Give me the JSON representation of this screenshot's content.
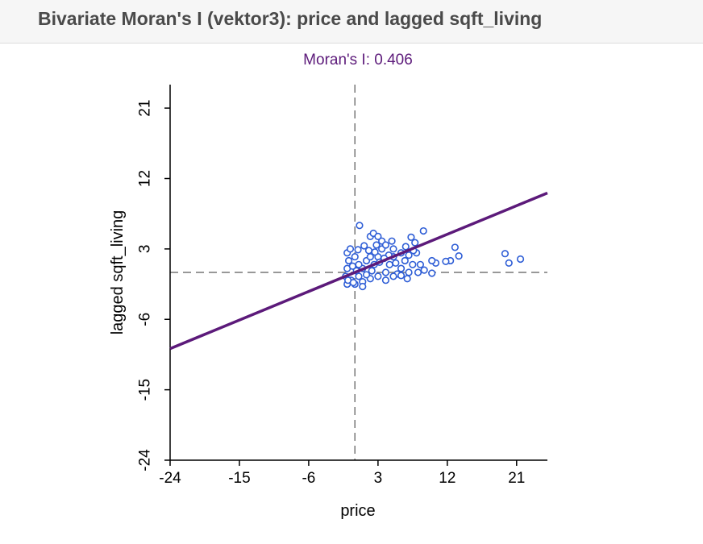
{
  "window": {
    "title": "Bivariate Moran's I (vektor3): price and lagged sqft_living"
  },
  "chart_data": {
    "type": "scatter",
    "title": "Moran's I: 0.406",
    "xlabel": "price",
    "ylabel": "lagged sqft_living",
    "xlim": [
      -24,
      25
    ],
    "ylim": [
      -24,
      24
    ],
    "xticks": [
      "-24",
      "-15",
      "-6",
      "3",
      "12",
      "21"
    ],
    "yticks": [
      "-24",
      "-15",
      "-6",
      "3",
      "12",
      "21"
    ],
    "grid": false,
    "reference_lines": {
      "x": 0,
      "y": 0
    },
    "regression": {
      "slope": 0.406,
      "intercept": 0
    },
    "colors": {
      "title": "#5c1a7a",
      "points": "#2f5ed6",
      "line": "#5c1a7a",
      "reference": "#777777"
    },
    "series": [
      {
        "values": [
          [
            0.6,
            6.0
          ],
          [
            8.9,
            5.3
          ],
          [
            13.5,
            2.1
          ],
          [
            13.0,
            3.2
          ],
          [
            12.4,
            1.5
          ],
          [
            11.8,
            1.4
          ],
          [
            10.5,
            1.2
          ],
          [
            10.0,
            -0.1
          ],
          [
            7.8,
            3.8
          ],
          [
            7.0,
            2.2
          ],
          [
            6.5,
            1.5
          ],
          [
            6.0,
            0.5
          ],
          [
            8.0,
            2.5
          ],
          [
            8.5,
            1.0
          ],
          [
            9.0,
            0.3
          ],
          [
            10.0,
            1.5
          ],
          [
            5.0,
            2.0
          ],
          [
            4.5,
            1.0
          ],
          [
            5.5,
            -0.2
          ],
          [
            3.5,
            3.0
          ],
          [
            3.0,
            2.0
          ],
          [
            2.5,
            1.0
          ],
          [
            2.0,
            4.6
          ],
          [
            2.4,
            5.0
          ],
          [
            1.5,
            1.5
          ],
          [
            1.0,
            0.5
          ],
          [
            0.5,
            -0.5
          ],
          [
            -0.5,
            -1.0
          ],
          [
            -1.0,
            -1.5
          ],
          [
            -1.2,
            -0.5
          ],
          [
            -1.0,
            0.5
          ],
          [
            -0.8,
            1.5
          ],
          [
            -1.0,
            2.5
          ],
          [
            -0.6,
            3.0
          ],
          [
            0.0,
            2.0
          ],
          [
            0.5,
            1.0
          ],
          [
            0.0,
            -1.5
          ],
          [
            1.0,
            -1.2
          ],
          [
            2.0,
            -0.8
          ],
          [
            3.0,
            -0.5
          ],
          [
            4.0,
            0.0
          ],
          [
            4.0,
            -1.0
          ],
          [
            5.0,
            -0.5
          ],
          [
            6.0,
            -0.4
          ],
          [
            7.0,
            0.0
          ],
          [
            7.5,
            1.0
          ],
          [
            3.5,
            4.0
          ],
          [
            4.0,
            3.5
          ],
          [
            5.0,
            3.0
          ],
          [
            6.0,
            2.5
          ],
          [
            3.0,
            4.6
          ],
          [
            2.8,
            3.5
          ],
          [
            1.8,
            2.8
          ],
          [
            1.2,
            3.4
          ],
          [
            1.5,
            -0.3
          ],
          [
            0.2,
            0.2
          ],
          [
            -0.3,
            0.8
          ],
          [
            -0.9,
            -1.0
          ],
          [
            2.2,
            0.2
          ],
          [
            3.2,
            1.3
          ],
          [
            4.4,
            2.2
          ],
          [
            6.6,
            3.3
          ],
          [
            7.6,
            2.8
          ],
          [
            8.2,
            0.0
          ],
          [
            6.8,
            -0.8
          ],
          [
            5.3,
            1.2
          ],
          [
            4.8,
            4.0
          ],
          [
            2.6,
            2.6
          ],
          [
            1.0,
            -1.8
          ],
          [
            0.4,
            2.9
          ],
          [
            -0.2,
            -1.3
          ],
          [
            3.8,
            1.8
          ],
          [
            2.0,
            2.0
          ],
          [
            7.3,
            4.5
          ],
          [
            20.0,
            1.2
          ],
          [
            21.5,
            1.7
          ],
          [
            19.5,
            2.4
          ]
        ]
      }
    ]
  }
}
